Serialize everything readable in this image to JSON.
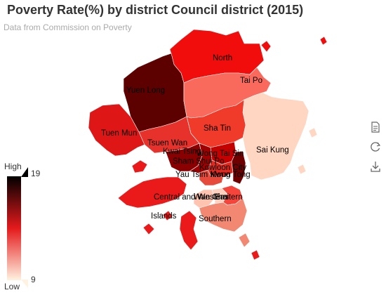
{
  "title": "Poverty Rate(%) by district Council district (2015)",
  "subtitle": "Data from Commission on Poverty",
  "visual_map": {
    "high_label": "High",
    "low_label": "Low",
    "max": "19",
    "min": "9",
    "color_high": "#000000",
    "color_mid": "#e41a1c",
    "color_low": "#fff2e0"
  },
  "toolbox": [
    "data-view-icon",
    "restore-icon",
    "save-as-image-icon"
  ],
  "districts": [
    {
      "name": "North",
      "fill": "#f20d0d"
    },
    {
      "name": "Tai Po",
      "fill": "#fa6a5c"
    },
    {
      "name": "Yuen Long",
      "fill": "#5c0000"
    },
    {
      "name": "Tuen Mun",
      "fill": "#de1616"
    },
    {
      "name": "Sha Tin",
      "fill": "#f03a2a"
    },
    {
      "name": "Sai Kung",
      "fill": "#ffd6c2"
    },
    {
      "name": "Tsuen Wan",
      "fill": "#e6322a"
    },
    {
      "name": "Kwai Tsing",
      "fill": "#8a0000"
    },
    {
      "name": "Wong Tai Sin",
      "fill": "#c40000"
    },
    {
      "name": "Sham Shui Po",
      "fill": "#a00000"
    },
    {
      "name": "Kowloon City",
      "fill": "#e02a20"
    },
    {
      "name": "Yau Tsim Mong",
      "fill": "#e64a3a"
    },
    {
      "name": "Kwun Tong",
      "fill": "#6e0000"
    },
    {
      "name": "Central and Western",
      "fill": "#ffc4b0"
    },
    {
      "name": "Wan Chai",
      "fill": "#ffd0bd"
    },
    {
      "name": "Eastern",
      "fill": "#f5443a"
    },
    {
      "name": "Southern",
      "fill": "#f28872"
    },
    {
      "name": "Islands",
      "fill": "#ea1a1a"
    }
  ]
}
